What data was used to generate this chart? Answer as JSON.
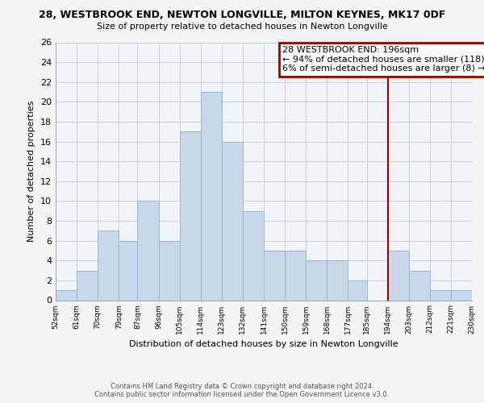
{
  "title": "28, WESTBROOK END, NEWTON LONGVILLE, MILTON KEYNES, MK17 0DF",
  "subtitle": "Size of property relative to detached houses in Newton Longville",
  "xlabel": "Distribution of detached houses by size in Newton Longville",
  "ylabel": "Number of detached properties",
  "bar_color": "#c8d8ea",
  "bar_edge_color": "#9ab8cc",
  "bin_edges": [
    52,
    61,
    70,
    79,
    87,
    96,
    105,
    114,
    123,
    132,
    141,
    150,
    159,
    168,
    177,
    185,
    194,
    203,
    212,
    221,
    230
  ],
  "bin_labels": [
    "52sqm",
    "61sqm",
    "70sqm",
    "79sqm",
    "87sqm",
    "96sqm",
    "105sqm",
    "114sqm",
    "123sqm",
    "132sqm",
    "141sqm",
    "150sqm",
    "159sqm",
    "168sqm",
    "177sqm",
    "185sqm",
    "194sqm",
    "203sqm",
    "212sqm",
    "221sqm",
    "230sqm"
  ],
  "counts": [
    1,
    3,
    7,
    6,
    10,
    6,
    17,
    21,
    16,
    9,
    5,
    5,
    4,
    4,
    2,
    0,
    5,
    3,
    1,
    1
  ],
  "property_line_x": 194,
  "ylim": [
    0,
    26
  ],
  "yticks": [
    0,
    2,
    4,
    6,
    8,
    10,
    12,
    14,
    16,
    18,
    20,
    22,
    24,
    26
  ],
  "annotation_title": "28 WESTBROOK END: 196sqm",
  "annotation_line1": "← 94% of detached houses are smaller (118)",
  "annotation_line2": "6% of semi-detached houses are larger (8) →",
  "annotation_box_color": "#ffffff",
  "annotation_border_color": "#990000",
  "vline_color": "#990000",
  "footer_line1": "Contains HM Land Registry data © Crown copyright and database right 2024.",
  "footer_line2": "Contains public sector information licensed under the Open Government Licence v3.0.",
  "background_color": "#f5f5f5",
  "plot_background": "#f0f4f8",
  "grid_color": "#d0d0d0"
}
